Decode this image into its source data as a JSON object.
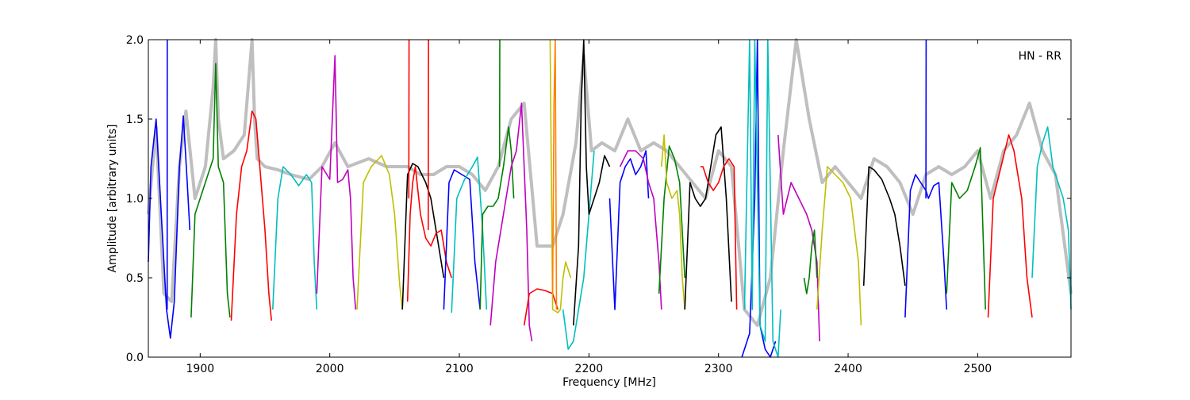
{
  "chart_data": {
    "type": "line",
    "title": "",
    "annotation": "HN - RR",
    "xlabel": "Frequency [MHz]",
    "ylabel": "Amplitude [arbitrary units]",
    "xlim": [
      1860,
      2572
    ],
    "ylim": [
      0.0,
      2.0
    ],
    "xticks": [
      1900,
      2000,
      2100,
      2200,
      2300,
      2400,
      2500
    ],
    "yticks": [
      0.0,
      0.5,
      1.0,
      1.5,
      2.0
    ],
    "xtick_labels": [
      "1900",
      "2000",
      "2100",
      "2200",
      "2300",
      "2400",
      "2500"
    ],
    "ytick_labels": [
      "0.0",
      "0.5",
      "1.0",
      "1.5",
      "2.0"
    ],
    "grid": false,
    "legend": "none",
    "envelope": {
      "color": "#bfbfbf",
      "x": [
        1860,
        1866,
        1872,
        1878,
        1884,
        1889,
        1896,
        1904,
        1910,
        1912,
        1914,
        1918,
        1926,
        1934,
        1940,
        1942,
        1944,
        1950,
        1960,
        1970,
        1984,
        1994,
        2004,
        2014,
        2030,
        2044,
        2060,
        2070,
        2080,
        2090,
        2100,
        2110,
        2120,
        2130,
        2140,
        2150,
        2160,
        2172,
        2180,
        2190,
        2196,
        2202,
        2210,
        2220,
        2230,
        2240,
        2250,
        2260,
        2270,
        2280,
        2290,
        2300,
        2310,
        2320,
        2330,
        2340,
        2350,
        2360,
        2370,
        2380,
        2390,
        2400,
        2410,
        2420,
        2430,
        2440,
        2450,
        2460,
        2470,
        2480,
        2490,
        2500,
        2510,
        2520,
        2530,
        2540,
        2545,
        2550,
        2560,
        2572
      ],
      "y": [
        0.9,
        1.45,
        0.4,
        0.35,
        1.2,
        1.55,
        1.0,
        1.2,
        1.7,
        2.0,
        1.5,
        1.25,
        1.3,
        1.4,
        2.0,
        1.5,
        1.25,
        1.2,
        1.18,
        1.15,
        1.12,
        1.2,
        1.35,
        1.2,
        1.25,
        1.2,
        1.2,
        1.15,
        1.15,
        1.2,
        1.2,
        1.15,
        1.05,
        1.2,
        1.5,
        1.6,
        0.7,
        0.7,
        0.9,
        1.35,
        1.9,
        1.3,
        1.35,
        1.3,
        1.5,
        1.3,
        1.35,
        1.3,
        1.2,
        1.1,
        1.0,
        1.3,
        1.2,
        0.3,
        0.2,
        0.5,
        1.3,
        2.0,
        1.5,
        1.1,
        1.2,
        1.1,
        1.0,
        1.25,
        1.2,
        1.1,
        0.9,
        1.15,
        1.2,
        1.15,
        1.2,
        1.3,
        1.0,
        1.3,
        1.4,
        1.6,
        1.45,
        1.3,
        1.15,
        0.4
      ]
    },
    "series": [
      {
        "color": "#0000ff",
        "x": [
          1860,
          1862,
          1866,
          1870,
          1874,
          1877,
          1880,
          1884,
          1887,
          1890,
          1892
        ],
        "y": [
          0.6,
          1.2,
          1.5,
          0.9,
          0.3,
          0.12,
          0.35,
          1.2,
          1.52,
          1.1,
          0.8
        ]
      },
      {
        "color": "#0000ff",
        "x": [
          1874.5,
          1874.6
        ],
        "y": [
          0.3,
          2.0
        ]
      },
      {
        "color": "#008000",
        "x": [
          1893,
          1896,
          1900,
          1906,
          1910,
          1912,
          1914,
          1918,
          1921,
          1923
        ],
        "y": [
          0.25,
          0.9,
          1.0,
          1.15,
          1.25,
          1.85,
          1.2,
          1.1,
          0.4,
          0.25
        ]
      },
      {
        "color": "#ff0000",
        "x": [
          1924,
          1928,
          1932,
          1936,
          1940,
          1943,
          1946,
          1950,
          1953,
          1955
        ],
        "y": [
          0.23,
          0.9,
          1.2,
          1.3,
          1.55,
          1.5,
          1.2,
          0.8,
          0.4,
          0.23
        ]
      },
      {
        "color": "#00bfbf",
        "x": [
          1956,
          1960,
          1964,
          1970,
          1976,
          1982,
          1986,
          1988,
          1990
        ],
        "y": [
          0.3,
          1.0,
          1.2,
          1.15,
          1.08,
          1.15,
          1.1,
          0.6,
          0.3
        ]
      },
      {
        "color": "#bf00bf",
        "x": [
          1990,
          1994,
          2000,
          2004,
          2006,
          2010,
          2014,
          2016,
          2018,
          2020
        ],
        "y": [
          0.4,
          1.2,
          1.12,
          1.9,
          1.1,
          1.12,
          1.18,
          1.0,
          0.5,
          0.3
        ]
      },
      {
        "color": "#bfbf00",
        "x": [
          2021,
          2026,
          2032,
          2040,
          2046,
          2050,
          2054,
          2056
        ],
        "y": [
          0.3,
          1.1,
          1.2,
          1.27,
          1.15,
          0.9,
          0.45,
          0.3
        ]
      },
      {
        "color": "#000000",
        "x": [
          2056,
          2060,
          2064,
          2068,
          2074,
          2078,
          2084,
          2088
        ],
        "y": [
          0.3,
          1.15,
          1.22,
          1.2,
          1.1,
          1.0,
          0.7,
          0.5
        ]
      },
      {
        "color": "#ff0000",
        "x": [
          2060,
          2062,
          2064,
          2066,
          2070,
          2074,
          2078,
          2082,
          2086,
          2090,
          2094
        ],
        "y": [
          0.35,
          0.9,
          1.1,
          1.2,
          0.9,
          0.75,
          0.7,
          0.78,
          0.8,
          0.6,
          0.5
        ]
      },
      {
        "color": "#ff0000",
        "x": [
          2061,
          2061.2
        ],
        "y": [
          1.0,
          2.0
        ]
      },
      {
        "color": "#ff0000",
        "x": [
          2076,
          2076.2
        ],
        "y": [
          0.8,
          2.0
        ]
      },
      {
        "color": "#0000ff",
        "x": [
          2088,
          2092,
          2096,
          2102,
          2108,
          2112,
          2116
        ],
        "y": [
          0.3,
          1.1,
          1.18,
          1.15,
          1.12,
          0.6,
          0.3
        ]
      },
      {
        "color": "#00bfbf",
        "x": [
          2094,
          2098,
          2104,
          2110,
          2114,
          2118,
          2121
        ],
        "y": [
          0.28,
          1.0,
          1.12,
          1.2,
          1.26,
          0.8,
          0.3
        ]
      },
      {
        "color": "#008000",
        "x": [
          2116,
          2118,
          2122,
          2126,
          2130,
          2134,
          2138,
          2140,
          2142
        ],
        "y": [
          0.3,
          0.9,
          0.95,
          0.95,
          1.0,
          1.2,
          1.45,
          1.3,
          1.0
        ]
      },
      {
        "color": "#008000",
        "x": [
          2131,
          2131.2
        ],
        "y": [
          1.2,
          2.0
        ]
      },
      {
        "color": "#bf00bf",
        "x": [
          2124,
          2128,
          2134,
          2140,
          2144,
          2148,
          2152,
          2154,
          2156
        ],
        "y": [
          0.2,
          0.6,
          0.9,
          1.2,
          1.3,
          1.6,
          0.8,
          0.2,
          0.1
        ]
      },
      {
        "color": "#ff0000",
        "x": [
          2150,
          2154,
          2160,
          2166,
          2172,
          2176
        ],
        "y": [
          0.2,
          0.4,
          0.43,
          0.42,
          0.4,
          0.3
        ]
      },
      {
        "color": "#bfbf00",
        "x": [
          2170,
          2172,
          2176,
          2178,
          2180,
          2182,
          2186
        ],
        "y": [
          2.0,
          0.3,
          0.28,
          0.3,
          0.5,
          0.6,
          0.5
        ]
      },
      {
        "color": "#ff8000",
        "x": [
          2172,
          2173,
          2174,
          2175
        ],
        "y": [
          0.4,
          1.6,
          2.0,
          0.3
        ]
      },
      {
        "color": "#00bfbf",
        "x": [
          2180,
          2184,
          2188,
          2192,
          2196,
          2200,
          2204
        ],
        "y": [
          0.3,
          0.05,
          0.1,
          0.3,
          0.5,
          0.9,
          1.3
        ]
      },
      {
        "color": "#000000",
        "x": [
          2188,
          2192,
          2194,
          2196,
          2198,
          2200,
          2204,
          2208,
          2212,
          2216
        ],
        "y": [
          0.2,
          0.7,
          1.6,
          2.0,
          1.2,
          0.9,
          1.0,
          1.1,
          1.27,
          1.2
        ]
      },
      {
        "color": "#0000ff",
        "x": [
          2216,
          2220,
          2224,
          2228,
          2232,
          2236,
          2240,
          2244,
          2246
        ],
        "y": [
          1.0,
          0.3,
          1.1,
          1.2,
          1.25,
          1.15,
          1.2,
          1.3,
          1.0
        ]
      },
      {
        "color": "#bf00bf",
        "x": [
          2224,
          2230,
          2236,
          2242,
          2246,
          2250,
          2254,
          2256
        ],
        "y": [
          1.2,
          1.3,
          1.3,
          1.25,
          1.1,
          1.0,
          0.6,
          0.3
        ]
      },
      {
        "color": "#008000",
        "x": [
          2254,
          2258,
          2262,
          2266,
          2270,
          2274
        ],
        "y": [
          0.4,
          1.0,
          1.33,
          1.25,
          1.1,
          0.5
        ]
      },
      {
        "color": "#bfbf00",
        "x": [
          2256,
          2258,
          2260,
          2264,
          2268,
          2270,
          2272,
          2274
        ],
        "y": [
          1.2,
          1.4,
          1.1,
          1.0,
          1.05,
          0.9,
          0.5,
          0.3
        ]
      },
      {
        "color": "#000000",
        "x": [
          2274,
          2278,
          2282,
          2286,
          2290,
          2294,
          2298,
          2302,
          2306,
          2310
        ],
        "y": [
          0.3,
          1.1,
          1.0,
          0.95,
          1.0,
          1.2,
          1.4,
          1.45,
          1.0,
          0.35
        ]
      },
      {
        "color": "#ff0000",
        "x": [
          2286,
          2288,
          2292,
          2296,
          2300,
          2304,
          2308,
          2312,
          2314
        ],
        "y": [
          1.2,
          1.2,
          1.1,
          1.05,
          1.1,
          1.2,
          1.25,
          1.2,
          0.3
        ]
      },
      {
        "color": "#0000ff",
        "x": [
          2318,
          2320,
          2324,
          2328,
          2330,
          2332,
          2336,
          2340,
          2344
        ],
        "y": [
          0.0,
          0.05,
          0.15,
          1.0,
          2.0,
          0.2,
          0.05,
          0.0,
          0.1
        ]
      },
      {
        "color": "#00bfbf",
        "x": [
          2320,
          2324,
          2326,
          2328,
          2332,
          2336,
          2338,
          2342,
          2346,
          2348
        ],
        "y": [
          0.3,
          2.0,
          0.3,
          2.0,
          0.2,
          0.1,
          2.0,
          0.1,
          0.0,
          0.3
        ]
      },
      {
        "color": "#bf00bf",
        "x": [
          2346,
          2350,
          2356,
          2362,
          2368,
          2372,
          2376,
          2378
        ],
        "y": [
          1.4,
          0.9,
          1.1,
          1.0,
          0.9,
          0.8,
          0.6,
          0.1
        ]
      },
      {
        "color": "#008000",
        "x": [
          2366,
          2368,
          2370,
          2372,
          2374,
          2376
        ],
        "y": [
          0.5,
          0.4,
          0.5,
          0.7,
          0.8,
          0.5
        ]
      },
      {
        "color": "#bfbf00",
        "x": [
          2376,
          2380,
          2384,
          2390,
          2396,
          2402,
          2408,
          2410
        ],
        "y": [
          0.3,
          0.8,
          1.2,
          1.15,
          1.1,
          1.0,
          0.6,
          0.2
        ]
      },
      {
        "color": "#000000",
        "x": [
          2412,
          2416,
          2420,
          2426,
          2432,
          2436,
          2440,
          2444
        ],
        "y": [
          0.45,
          1.2,
          1.18,
          1.12,
          1.0,
          0.9,
          0.7,
          0.45
        ]
      },
      {
        "color": "#0000ff",
        "x": [
          2444,
          2448,
          2452,
          2456,
          2460,
          2462,
          2466,
          2470,
          2474,
          2476
        ],
        "y": [
          0.25,
          1.05,
          1.15,
          1.1,
          1.05,
          1.0,
          1.08,
          1.1,
          0.6,
          0.3
        ]
      },
      {
        "color": "#0000ff",
        "x": [
          2460,
          2460.2
        ],
        "y": [
          1.0,
          2.0
        ]
      },
      {
        "color": "#008000",
        "x": [
          2476,
          2480,
          2486,
          2492,
          2498,
          2502,
          2506
        ],
        "y": [
          0.4,
          1.1,
          1.0,
          1.05,
          1.2,
          1.32,
          0.3
        ]
      },
      {
        "color": "#ff0000",
        "x": [
          2508,
          2512,
          2518,
          2524,
          2528,
          2534,
          2538,
          2542
        ],
        "y": [
          0.25,
          1.0,
          1.2,
          1.4,
          1.3,
          1.0,
          0.5,
          0.25
        ]
      },
      {
        "color": "#00bfbf",
        "x": [
          2542,
          2546,
          2550,
          2554,
          2558,
          2562,
          2566,
          2570,
          2572
        ],
        "y": [
          0.5,
          1.2,
          1.35,
          1.45,
          1.2,
          1.1,
          1.0,
          0.8,
          0.3
        ]
      }
    ]
  }
}
